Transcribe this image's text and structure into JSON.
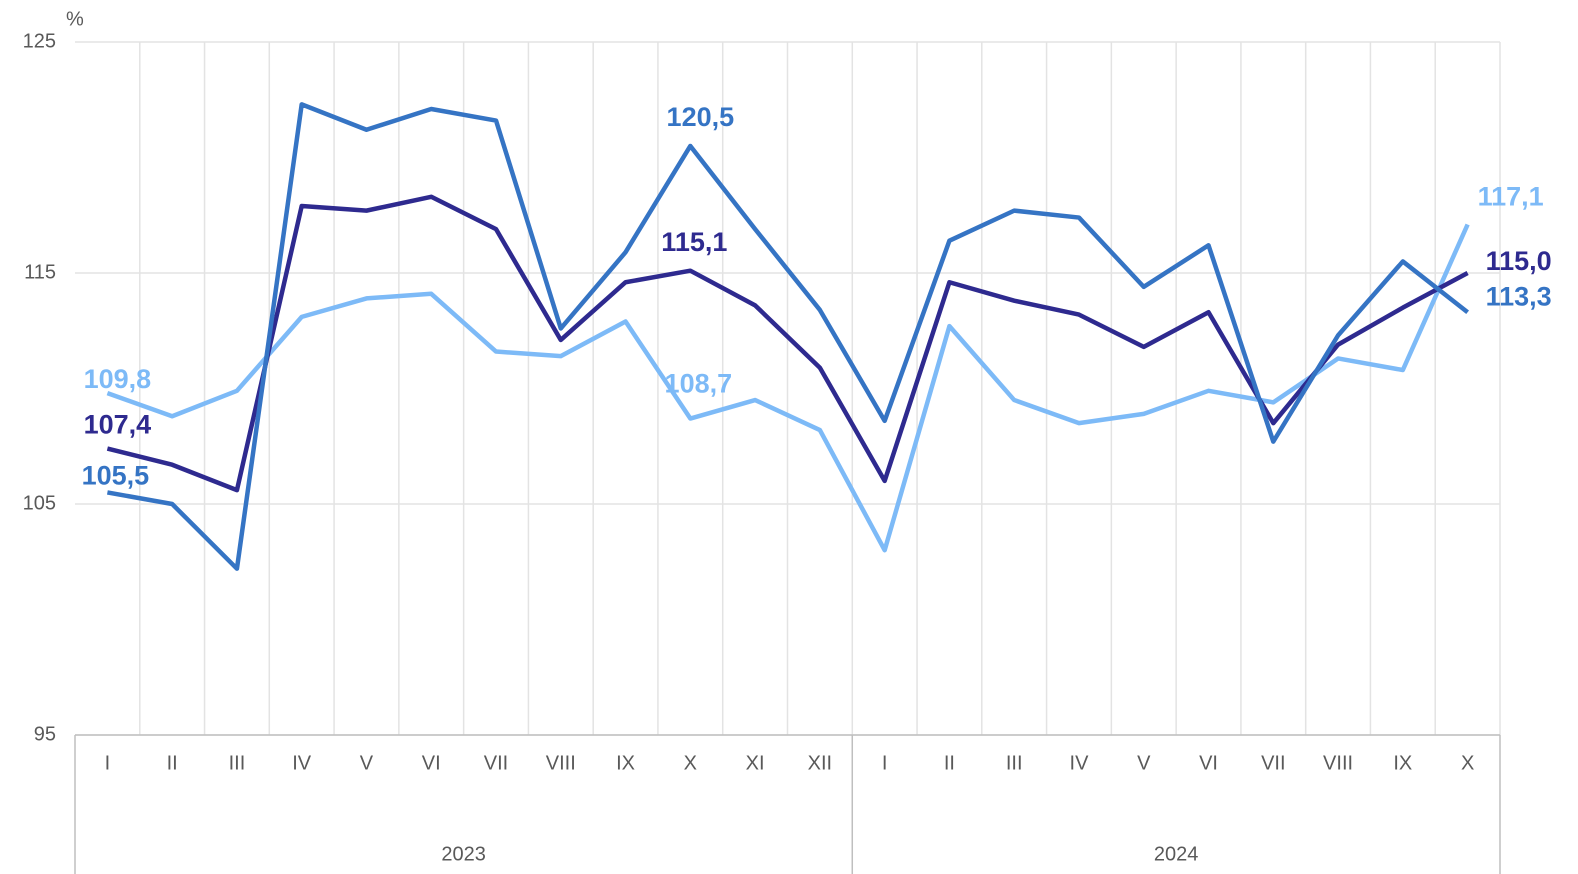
{
  "chart_data": {
    "type": "line",
    "y_unit": "%",
    "categories": [
      "I",
      "II",
      "III",
      "IV",
      "V",
      "VI",
      "VII",
      "VIII",
      "IX",
      "X",
      "XI",
      "XII",
      "I",
      "II",
      "III",
      "IV",
      "V",
      "VI",
      "VII",
      "VIII",
      "IX",
      "X"
    ],
    "category_groups": [
      {
        "label": "2023",
        "size": 12
      },
      {
        "label": "2024",
        "size": 10
      }
    ],
    "series": [
      {
        "color": "#7dbaf7",
        "values": [
          109.8,
          108.8,
          109.9,
          113.1,
          113.9,
          114.1,
          111.6,
          111.4,
          112.9,
          108.7,
          109.5,
          108.2,
          103.0,
          112.7,
          109.5,
          108.5,
          108.9,
          109.9,
          109.4,
          111.3,
          110.8,
          117.1
        ],
        "value_labels": [
          "109,8",
          null,
          null,
          null,
          null,
          null,
          null,
          null,
          null,
          "108,7",
          null,
          null,
          null,
          null,
          null,
          null,
          null,
          null,
          null,
          null,
          null,
          "117,1"
        ]
      },
      {
        "color": "#2e2a8f",
        "values": [
          107.4,
          106.7,
          105.6,
          117.9,
          117.7,
          118.3,
          116.9,
          112.1,
          114.6,
          115.1,
          113.6,
          110.9,
          106.0,
          114.6,
          113.8,
          113.2,
          111.8,
          113.3,
          108.5,
          111.9,
          113.5,
          115.0
        ],
        "value_labels": [
          "107,4",
          null,
          null,
          null,
          null,
          null,
          null,
          null,
          null,
          "115,1",
          null,
          null,
          null,
          null,
          null,
          null,
          null,
          null,
          null,
          null,
          null,
          "115,0"
        ]
      },
      {
        "color": "#3574c4",
        "values": [
          105.5,
          105.0,
          102.2,
          122.3,
          121.2,
          122.1,
          121.6,
          112.6,
          115.9,
          120.5,
          116.9,
          113.4,
          108.6,
          116.4,
          117.7,
          117.4,
          114.4,
          116.2,
          107.7,
          112.3,
          115.5,
          113.3
        ],
        "value_labels": [
          "105,5",
          null,
          null,
          null,
          null,
          null,
          null,
          null,
          null,
          "120,5",
          null,
          null,
          null,
          null,
          null,
          null,
          null,
          null,
          null,
          null,
          null,
          "113,3"
        ]
      }
    ],
    "ylim": [
      95,
      125
    ],
    "yticks": [
      95,
      105,
      115,
      125
    ],
    "grid": true
  }
}
